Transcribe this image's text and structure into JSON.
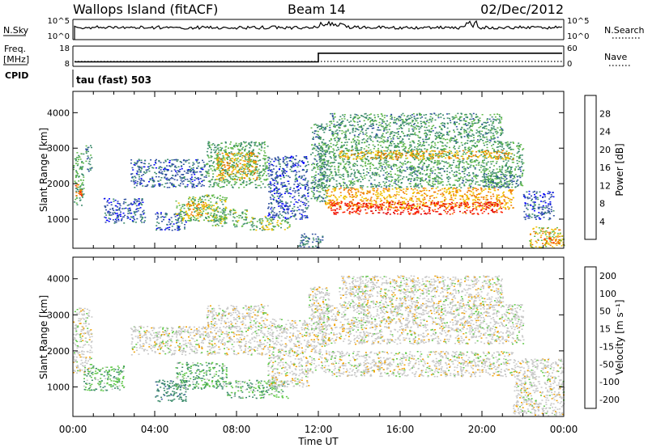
{
  "header": {
    "station": "Wallops Island (fitACF)",
    "beam": "Beam 14",
    "date": "02/Dec/2012"
  },
  "status_panels": {
    "nsky_label": "N.Sky",
    "nsky_top_tick": "10^5",
    "nsky_bottom_tick": "10^0",
    "nsearch_label": "N.Search",
    "nsearch_top_tick": "10^5",
    "nsearch_bottom_tick": "10^0",
    "freq_label": "Freq.",
    "freq_unit": "[MHz]",
    "freq_top_tick": "18",
    "freq_bottom_tick": "8",
    "nave_label": "Nave",
    "nave_top_tick": "60",
    "nave_bottom_tick": "0",
    "cpid_label": "CPID",
    "cpid_value": "tau (fast) 503",
    "freq_step_time": "12:00",
    "freq_before_mhz": 10.2,
    "freq_after_mhz": 14.5
  },
  "colors": {
    "power_scale": [
      "#0000ff",
      "#3050a0",
      "#3a8a6a",
      "#5fb84a",
      "#f0c000",
      "#f07800",
      "#ff2000",
      "#e00000"
    ],
    "velocity_scale": [
      "#0000ff",
      "#3c5aa0",
      "#3a8a6a",
      "#5fc848",
      "#c8c8c8",
      "#f0a000",
      "#f06000",
      "#ff0000"
    ],
    "accent_line": "#000000"
  },
  "chart_data": [
    {
      "type": "heatmap",
      "name": "power",
      "xlabel": "",
      "ylabel": "Slant Range [km]",
      "x_ticks": [
        "00:00",
        "04:00",
        "08:00",
        "12:00",
        "16:00",
        "20:00",
        "00:00"
      ],
      "y_ticks": [
        1000,
        2000,
        3000,
        4000
      ],
      "xlim_hours": [
        0,
        24
      ],
      "ylim_km": [
        180,
        4600
      ],
      "colorbar": {
        "label": "Power [dB]",
        "ticks": [
          4,
          8,
          12,
          16,
          20,
          24,
          28
        ],
        "range": [
          0,
          32
        ]
      },
      "regions": [
        {
          "x": [
            0.0,
            0.5
          ],
          "y": [
            1400,
            2900
          ],
          "value": 12
        },
        {
          "x": [
            0.1,
            0.4
          ],
          "y": [
            1600,
            2000
          ],
          "value": 22
        },
        {
          "x": [
            0.6,
            0.9
          ],
          "y": [
            2300,
            3100
          ],
          "value": 10
        },
        {
          "x": [
            1.5,
            3.5
          ],
          "y": [
            900,
            1600
          ],
          "value": 6
        },
        {
          "x": [
            2.8,
            6.5
          ],
          "y": [
            1900,
            2700
          ],
          "value": 7
        },
        {
          "x": [
            4.0,
            5.5
          ],
          "y": [
            700,
            1200
          ],
          "value": 6
        },
        {
          "x": [
            5.0,
            7.5
          ],
          "y": [
            950,
            1700
          ],
          "value": 14
        },
        {
          "x": [
            5.5,
            6.6
          ],
          "y": [
            1100,
            1500
          ],
          "value": 20
        },
        {
          "x": [
            6.5,
            9.5
          ],
          "y": [
            1900,
            3200
          ],
          "value": 12
        },
        {
          "x": [
            7.0,
            9.0
          ],
          "y": [
            2100,
            2900
          ],
          "value": 19
        },
        {
          "x": [
            6.8,
            8.5
          ],
          "y": [
            800,
            1300
          ],
          "value": 13
        },
        {
          "x": [
            8.6,
            10.6
          ],
          "y": [
            700,
            1100
          ],
          "value": 14
        },
        {
          "x": [
            9.5,
            11.5
          ],
          "y": [
            1000,
            2800
          ],
          "value": 6
        },
        {
          "x": [
            11.0,
            12.2
          ],
          "y": [
            200,
            600
          ],
          "value": 8
        },
        {
          "x": [
            11.6,
            12.4
          ],
          "y": [
            1500,
            3700
          ],
          "value": 10
        },
        {
          "x": [
            12.0,
            22.0
          ],
          "y": [
            2500,
            3200
          ],
          "value": 12
        },
        {
          "x": [
            13.0,
            21.5
          ],
          "y": [
            2700,
            2950
          ],
          "value": 20
        },
        {
          "x": [
            12.0,
            22.0
          ],
          "y": [
            1900,
            2500
          ],
          "value": 11
        },
        {
          "x": [
            12.3,
            21.5
          ],
          "y": [
            1300,
            1900
          ],
          "value": 20
        },
        {
          "x": [
            12.5,
            21.0
          ],
          "y": [
            1150,
            1500
          ],
          "value": 27
        },
        {
          "x": [
            12.5,
            21.0
          ],
          "y": [
            3200,
            4000
          ],
          "value": 11
        },
        {
          "x": [
            20.0,
            21.5
          ],
          "y": [
            1900,
            2400
          ],
          "value": 10
        },
        {
          "x": [
            22.0,
            23.5
          ],
          "y": [
            1000,
            1800
          ],
          "value": 6
        },
        {
          "x": [
            22.3,
            24.0
          ],
          "y": [
            200,
            800
          ],
          "value": 18
        },
        {
          "x": [
            22.8,
            23.8
          ],
          "y": [
            300,
            500
          ],
          "value": 23
        }
      ]
    },
    {
      "type": "heatmap",
      "name": "velocity",
      "xlabel": "Time UT",
      "ylabel": "Slant Range [km]",
      "x_ticks": [
        "00:00",
        "04:00",
        "08:00",
        "12:00",
        "16:00",
        "20:00",
        "00:00"
      ],
      "y_ticks": [
        1000,
        2000,
        3000,
        4000
      ],
      "xlim_hours": [
        0,
        24
      ],
      "ylim_km": [
        180,
        4600
      ],
      "colorbar": {
        "label": "Velocity [m s⁻¹]",
        "ticks": [
          200,
          100,
          50,
          15,
          -15,
          -50,
          -100,
          -200
        ]
      },
      "regions": [
        {
          "x": [
            0.0,
            0.9
          ],
          "y": [
            1400,
            3200
          ],
          "value": 0
        },
        {
          "x": [
            0.5,
            2.5
          ],
          "y": [
            900,
            1600
          ],
          "value": 30
        },
        {
          "x": [
            2.8,
            6.5
          ],
          "y": [
            1900,
            2700
          ],
          "value": 0
        },
        {
          "x": [
            4.0,
            5.5
          ],
          "y": [
            600,
            1200
          ],
          "value": 60
        },
        {
          "x": [
            5.0,
            7.5
          ],
          "y": [
            950,
            1700
          ],
          "value": 30
        },
        {
          "x": [
            6.5,
            9.5
          ],
          "y": [
            1900,
            3300
          ],
          "value": 0
        },
        {
          "x": [
            7.5,
            10.5
          ],
          "y": [
            700,
            1200
          ],
          "value": 25
        },
        {
          "x": [
            9.5,
            11.5
          ],
          "y": [
            1000,
            2900
          ],
          "value": 0
        },
        {
          "x": [
            11.5,
            12.5
          ],
          "y": [
            1400,
            3800
          ],
          "value": 0
        },
        {
          "x": [
            12.0,
            22.0
          ],
          "y": [
            2200,
            3300
          ],
          "value": 0
        },
        {
          "x": [
            12.5,
            21.5
          ],
          "y": [
            1300,
            2000
          ],
          "value": 0
        },
        {
          "x": [
            13.0,
            21.0
          ],
          "y": [
            3200,
            4100
          ],
          "value": 0
        },
        {
          "x": [
            21.5,
            24.0
          ],
          "y": [
            200,
            1800
          ],
          "value": 0
        }
      ]
    }
  ]
}
